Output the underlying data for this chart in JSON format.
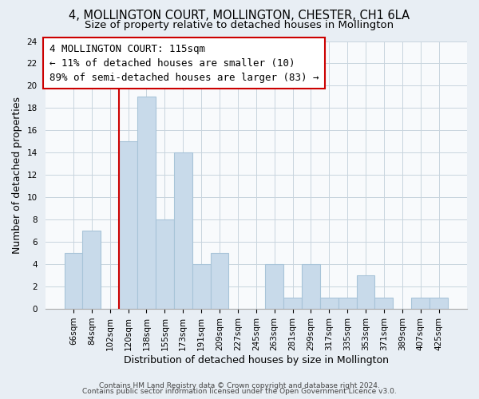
{
  "title": "4, MOLLINGTON COURT, MOLLINGTON, CHESTER, CH1 6LA",
  "subtitle": "Size of property relative to detached houses in Mollington",
  "xlabel": "Distribution of detached houses by size in Mollington",
  "ylabel": "Number of detached properties",
  "bar_color": "#c8daea",
  "bar_edge_color": "#a8c4d8",
  "categories": [
    "66sqm",
    "84sqm",
    "102sqm",
    "120sqm",
    "138sqm",
    "155sqm",
    "173sqm",
    "191sqm",
    "209sqm",
    "227sqm",
    "245sqm",
    "263sqm",
    "281sqm",
    "299sqm",
    "317sqm",
    "335sqm",
    "353sqm",
    "371sqm",
    "389sqm",
    "407sqm",
    "425sqm"
  ],
  "values": [
    5,
    7,
    0,
    15,
    19,
    8,
    14,
    4,
    5,
    0,
    0,
    4,
    1,
    4,
    1,
    1,
    3,
    1,
    0,
    1,
    1
  ],
  "ylim": [
    0,
    24
  ],
  "yticks": [
    0,
    2,
    4,
    6,
    8,
    10,
    12,
    14,
    16,
    18,
    20,
    22,
    24
  ],
  "vline_x": 3.5,
  "annotation_title": "4 MOLLINGTON COURT: 115sqm",
  "annotation_line1": "← 11% of detached houses are smaller (10)",
  "annotation_line2": "89% of semi-detached houses are larger (83) →",
  "footer_line1": "Contains HM Land Registry data © Crown copyright and database right 2024.",
  "footer_line2": "Contains public sector information licensed under the Open Government Licence v3.0.",
  "background_color": "#e8eef4",
  "plot_background": "#f8fafc",
  "grid_color": "#c8d4de",
  "vline_color": "#cc0000",
  "annotation_box_color": "#ffffff",
  "annotation_box_edge": "#cc0000",
  "title_fontsize": 10.5,
  "subtitle_fontsize": 9.5,
  "axis_label_fontsize": 9,
  "tick_fontsize": 7.5,
  "annotation_fontsize": 9,
  "footer_fontsize": 6.5
}
